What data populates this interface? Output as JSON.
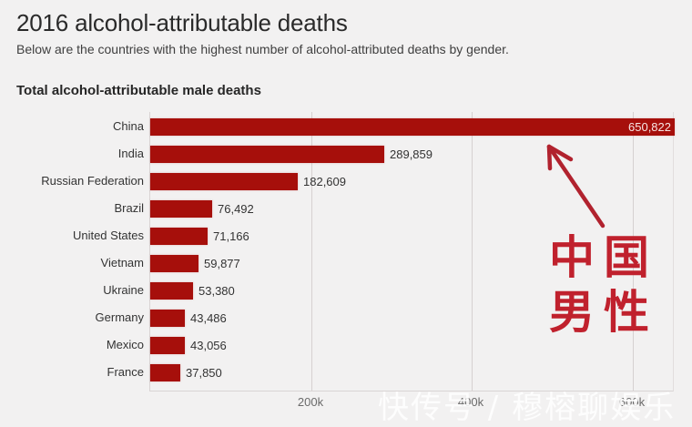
{
  "header": {
    "title": "2016 alcohol-attributable deaths",
    "subtitle": "Below are the countries with the highest number of alcohol-attributed deaths by gender."
  },
  "chart_data": {
    "type": "bar",
    "orientation": "horizontal",
    "title": "Total alcohol-attributable male deaths",
    "xlabel": "",
    "ylabel": "",
    "xlim": [
      0,
      650822
    ],
    "grid": true,
    "x_ticks": [
      "200k",
      "400k",
      "600k"
    ],
    "x_tick_values": [
      200000,
      400000,
      600000
    ],
    "categories": [
      "China",
      "India",
      "Russian Federation",
      "Brazil",
      "United States",
      "Vietnam",
      "Ukraine",
      "Germany",
      "Mexico",
      "France"
    ],
    "values": [
      650822,
      289859,
      182609,
      76492,
      71166,
      59877,
      53380,
      43486,
      43056,
      37850
    ],
    "value_labels": [
      "650,822",
      "289,859",
      "182,609",
      "76,492",
      "71,166",
      "59,877",
      "53,380",
      "43,486",
      "43,056",
      "37,850"
    ],
    "bar_color": "#a60f0b",
    "annotations": [
      {
        "type": "arrow",
        "points_to": "China",
        "color": "#c0212d"
      },
      {
        "type": "text",
        "text": "中国男性",
        "color": "#c0212d"
      }
    ]
  },
  "annotation": {
    "chars": [
      "中",
      "国",
      "男",
      "性"
    ]
  },
  "watermark": "快传号 / 穆榕聊娱乐"
}
